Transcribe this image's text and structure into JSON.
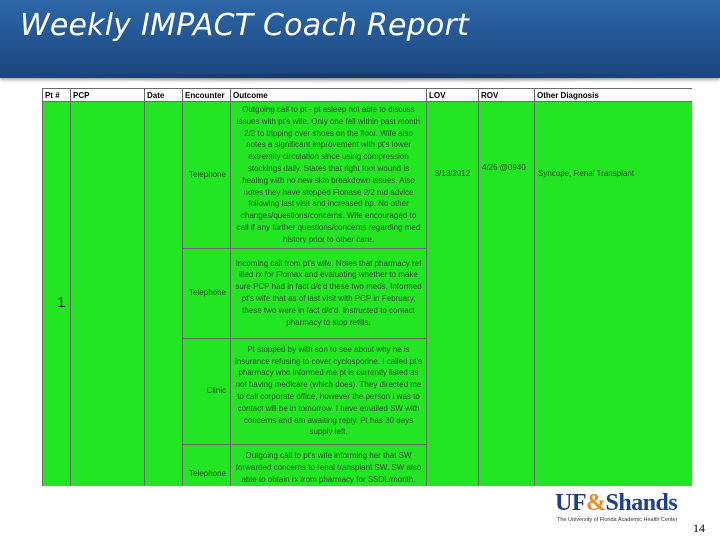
{
  "slide": {
    "title": "Weekly IMPACT Coach Report",
    "page_number": "14"
  },
  "table": {
    "headers": {
      "pt": "Pt #",
      "pcp": "PCP",
      "date": "Date",
      "encounter": "Encounter",
      "outcome": "Outcome",
      "lov": "LOV",
      "rov": "ROV",
      "other_diagnosis": "Other Diagnosis"
    },
    "rows": [
      {
        "pt": "1",
        "pcp": "",
        "date": "",
        "encounter": "Telephone",
        "outcome": "Outgoing call to pt - pt asleep not able to discuss issues with pt's wife. Only one fall within past month 2/2 to tripping over shoes on the floor. Wife also notes a significant improvement with pt's lower extremity circulation since using compression stockings daily. States that right foot wound is healing with no new skin breakdown issues. Also notes they have stopped Flonase 2/2 md advice following last visit and increased bp. No other changes/questions/concerns. Wife encouraged to call if any further questions/concerns regarding med history prior to other care.",
        "lov": "3/13/2012",
        "rov": "4/26 @0940",
        "other_diagnosis": "Syncope, Renal Transplant"
      },
      {
        "pt": "",
        "pcp": "",
        "date": "",
        "encounter": "Telephone",
        "outcome": "Incoming call from pt's wife. Notes that pharmacy ref illed rx for Flomax and evaluating whether to make sure PCP had in fact d/c'd these two meds. Informed pt's wife that as of last visit with PCP in February, these two were in fact d/c'd. Instructed to contact pharmacy to stop refills.",
        "lov": "",
        "rov": "",
        "other_diagnosis": ""
      },
      {
        "pt": "",
        "pcp": "",
        "date": "",
        "encounter": "Clinic",
        "outcome": "Pt stopped by with son to see about why he is insurance refusing to cover cyclosporine. I called pt's pharmacy who informed me pt is currently listed as not having medicare (which does). They directed me to call corporate office, however the person I was to contact will be in tomorrow. I have emailed SW with concerns and am awaiting reply. Pt has 30 days supply left.",
        "lov": "",
        "rov": "",
        "other_diagnosis": ""
      },
      {
        "pt": "",
        "pcp": "",
        "date": "",
        "encounter": "Telephone",
        "outcome": "Outgoing call to pt's wife informing her that SW forwarded concerns to renal transplant SW. SW also able to obtain rx from pharmacy for SSDL/month. Gave pt wife SW if she would like to use this option.",
        "lov": "",
        "rov": "",
        "other_diagnosis": ""
      }
    ]
  },
  "logo": {
    "name_part1": "UF",
    "ampersand": "&",
    "name_part2": "Shands",
    "tagline": "The University of Florida Academic Health Center"
  },
  "colors": {
    "title_bar": "#1f4f89",
    "row_fill": "#22e622",
    "logo_blue": "#1f3f8a",
    "logo_orange": "#f08a1e"
  }
}
